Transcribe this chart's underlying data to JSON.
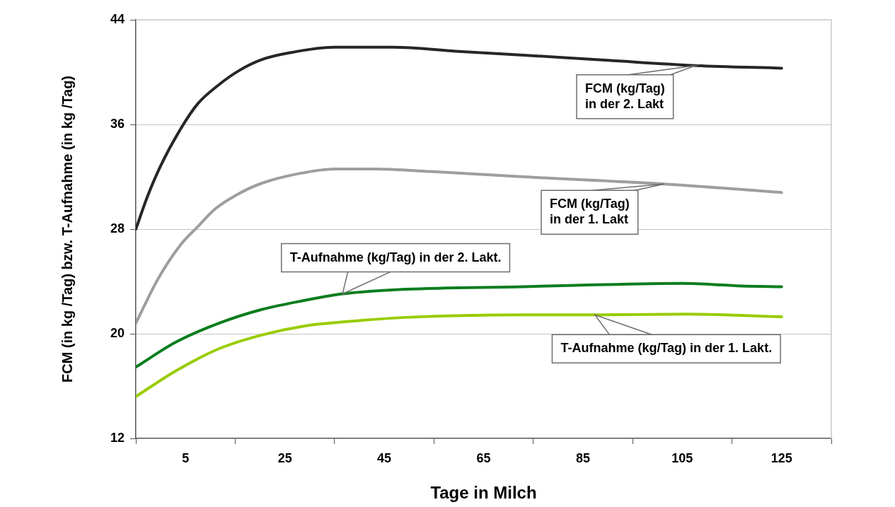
{
  "chart_data": {
    "type": "line",
    "xlabel": "Tage in Milch",
    "ylabel": "FCM (in kg /Tag) bzw. T-Aufnahme (in kg /Tag)",
    "xlim": [
      -5,
      135
    ],
    "xticks": [
      {
        "value": -5,
        "label": null
      },
      5,
      {
        "value": 15,
        "label": null
      },
      25,
      {
        "value": 35,
        "label": null
      },
      45,
      {
        "value": 55,
        "label": null
      },
      65,
      {
        "value": 75,
        "label": null
      },
      85,
      {
        "value": 95,
        "label": null
      },
      105,
      {
        "value": 115,
        "label": null
      },
      125,
      {
        "value": 135,
        "label": null
      }
    ],
    "ylim": [
      12,
      44
    ],
    "yticks": [
      12,
      20,
      28,
      36,
      44
    ],
    "grid": "y",
    "marker": "none",
    "series": [
      {
        "color": "#262626",
        "x": [
          -5,
          -2.6,
          0,
          4,
          7.5,
          11.6,
          15.7,
          20.3,
          26.3,
          35,
          46.7,
          59.4,
          73,
          90,
          107.7,
          125
        ],
        "values": [
          28.0,
          30.55,
          32.85,
          35.65,
          37.6,
          39.0,
          40.1,
          40.95,
          41.5,
          41.9,
          41.9,
          41.6,
          41.3,
          40.9,
          40.5,
          40.3
        ]
      },
      {
        "color": "#9e9e9e",
        "x": [
          -5,
          -0.6,
          4,
          7.5,
          11,
          15.2,
          20.3,
          27.9,
          35,
          43.2,
          54.3,
          73,
          101.3,
          125
        ],
        "values": [
          20.8,
          24.15,
          26.8,
          28.2,
          29.55,
          30.6,
          31.5,
          32.25,
          32.6,
          32.6,
          32.4,
          32.0,
          31.45,
          30.8
        ]
      },
      {
        "color": "#0a7d1e",
        "x": [
          -5,
          3,
          11.7,
          20.3,
          29,
          36.6,
          49.3,
          73,
          83.6,
          105,
          117,
          125
        ],
        "values": [
          17.45,
          19.35,
          20.8,
          21.85,
          22.55,
          23.05,
          23.4,
          23.6,
          23.7,
          23.85,
          23.65,
          23.6
        ]
      },
      {
        "color": "#99cc00",
        "x": [
          -5,
          3,
          11.7,
          20.3,
          29,
          36.6,
          49.3,
          73,
          88,
          106,
          125
        ],
        "values": [
          15.2,
          17.15,
          18.85,
          19.9,
          20.6,
          20.9,
          21.25,
          21.45,
          21.45,
          21.5,
          21.3
        ]
      }
    ],
    "annotations": [
      {
        "text": "FCM (kg/Tag)\nin der 2. Lakt",
        "x": 107.7,
        "y": 40.5
      },
      {
        "text": "FCM (kg/Tag)\nin der 1. Lakt",
        "x": 101.3,
        "y": 31.45
      },
      {
        "text": "T-Aufnahme (kg/Tag) in der 2. Lakt.",
        "x": 36.6,
        "y": 23.05
      },
      {
        "text": "T-Aufnahme (kg/Tag) in der 1. Lakt.",
        "x": 87.4,
        "y": 21.45
      }
    ]
  }
}
